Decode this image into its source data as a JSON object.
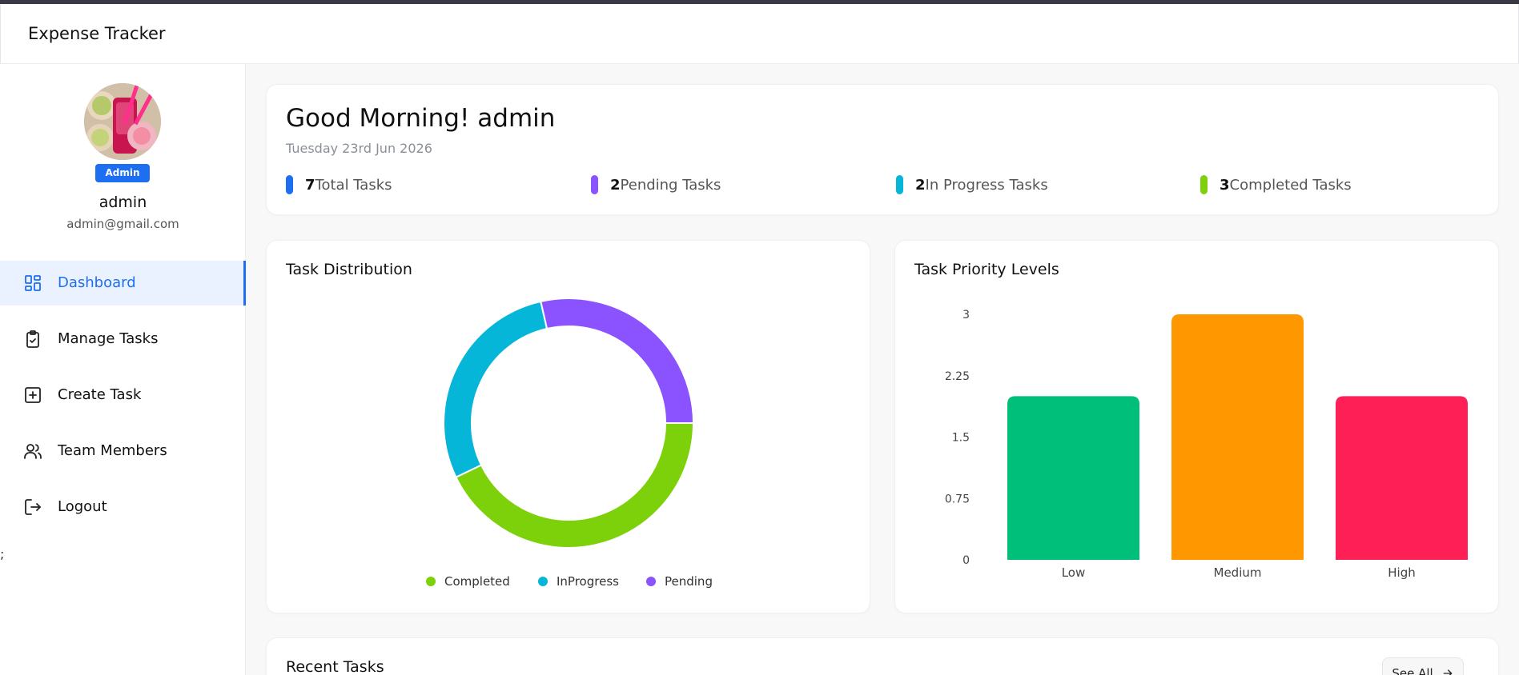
{
  "app": {
    "title": "Expense Tracker"
  },
  "sidebar": {
    "role_badge": "Admin",
    "user_name": "admin",
    "user_email": "admin@gmail.com",
    "items": [
      {
        "label": "Dashboard",
        "icon": "dashboard-icon",
        "active": true
      },
      {
        "label": "Manage Tasks",
        "icon": "clipboard-check-icon",
        "active": false
      },
      {
        "label": "Create Task",
        "icon": "plus-square-icon",
        "active": false
      },
      {
        "label": "Team Members",
        "icon": "users-icon",
        "active": false
      },
      {
        "label": "Logout",
        "icon": "logout-icon",
        "active": false
      }
    ],
    "stray_text": ";"
  },
  "greeting": {
    "title": "Good Morning! admin",
    "date": "Tuesday 23rd Jun 2026",
    "stats": [
      {
        "value": "7",
        "label": "Total Tasks",
        "color": "#1e6ef2"
      },
      {
        "value": "2",
        "label": "Pending Tasks",
        "color": "#8b52ff"
      },
      {
        "value": "2",
        "label": "In Progress Tasks",
        "color": "#06b6d8"
      },
      {
        "value": "3",
        "label": "Completed Tasks",
        "color": "#7cd10a"
      }
    ]
  },
  "distribution": {
    "title": "Task Distribution"
  },
  "priority": {
    "title": "Task Priority Levels"
  },
  "recent": {
    "title": "Recent Tasks",
    "see_all": "See All"
  },
  "chart_data": [
    {
      "type": "pie",
      "title": "Task Distribution",
      "categories": [
        "Completed",
        "InProgress",
        "Pending"
      ],
      "values": [
        3,
        2,
        2
      ],
      "colors": [
        "#7cd10a",
        "#06b6d8",
        "#8b52ff"
      ],
      "legend": "bottom"
    },
    {
      "type": "bar",
      "title": "Task Priority Levels",
      "categories": [
        "Low",
        "Medium",
        "High"
      ],
      "values": [
        2,
        3,
        2
      ],
      "colors": [
        "#00bf7a",
        "#ff9800",
        "#ff1f57"
      ],
      "ylim": [
        0,
        3
      ],
      "yticks": [
        "0",
        "0.75",
        "1.5",
        "2.25",
        "3"
      ],
      "grid": false
    }
  ]
}
